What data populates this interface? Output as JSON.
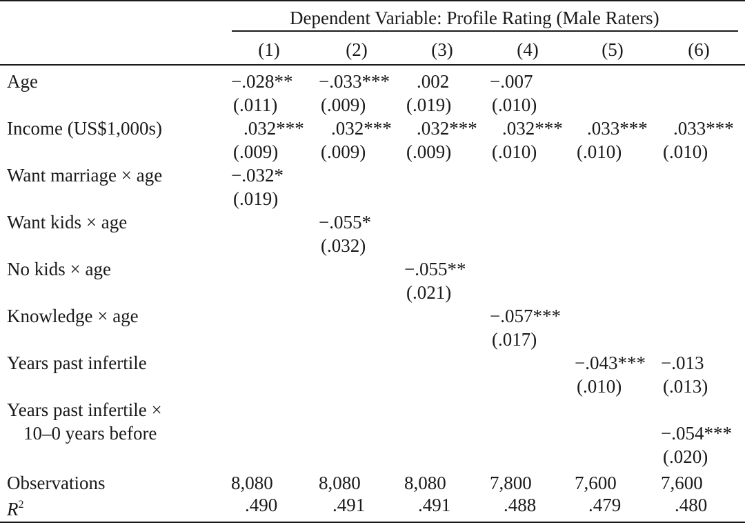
{
  "table": {
    "dependent_variable": "Dependent Variable: Profile Rating (Male Raters)",
    "columns": [
      "(1)",
      "(2)",
      "(3)",
      "(4)",
      "(5)",
      "(6)"
    ],
    "rows": [
      {
        "label": "Age",
        "coef": [
          "−.028**",
          "−.033***",
          ".002",
          "−.007",
          "",
          ""
        ],
        "se": [
          "(.011)",
          "(.009)",
          "(.019)",
          "(.010)",
          "",
          ""
        ]
      },
      {
        "label": "Income (US$1,000s)",
        "coef": [
          ".032***",
          ".032***",
          ".032***",
          ".032***",
          ".033***",
          ".033***"
        ],
        "se": [
          "(.009)",
          "(.009)",
          "(.009)",
          "(.010)",
          "(.010)",
          "(.010)"
        ]
      },
      {
        "label": "Want marriage × age",
        "coef": [
          "−.032*",
          "",
          "",
          "",
          "",
          ""
        ],
        "se": [
          "(.019)",
          "",
          "",
          "",
          "",
          ""
        ]
      },
      {
        "label": "Want kids × age",
        "coef": [
          "",
          "−.055*",
          "",
          "",
          "",
          ""
        ],
        "se": [
          "",
          "(.032)",
          "",
          "",
          "",
          ""
        ]
      },
      {
        "label": "No kids × age",
        "coef": [
          "",
          "",
          "−.055**",
          "",
          "",
          ""
        ],
        "se": [
          "",
          "",
          "(.021)",
          "",
          "",
          ""
        ]
      },
      {
        "label": "Knowledge × age",
        "coef": [
          "",
          "",
          "",
          "−.057***",
          "",
          ""
        ],
        "se": [
          "",
          "",
          "",
          "(.017)",
          "",
          ""
        ]
      },
      {
        "label": "Years past infertile",
        "coef": [
          "",
          "",
          "",
          "",
          "−.043***",
          "−.013"
        ],
        "se": [
          "",
          "",
          "",
          "",
          "(.010)",
          "(.013)"
        ]
      },
      {
        "label": "Years past infertile ×",
        "label2": "10–0 years before",
        "coef": [
          "",
          "",
          "",
          "",
          "",
          "−.054***"
        ],
        "se": [
          "",
          "",
          "",
          "",
          "",
          "(.020)"
        ]
      }
    ],
    "observations": {
      "label": "Observations",
      "values": [
        "8,080",
        "8,080",
        "8,080",
        "7,800",
        "7,600",
        "7,600"
      ]
    },
    "r2": {
      "label": "R",
      "sup": "2",
      "values": [
        ".490",
        ".491",
        ".491",
        ".488",
        ".479",
        ".480"
      ]
    }
  }
}
